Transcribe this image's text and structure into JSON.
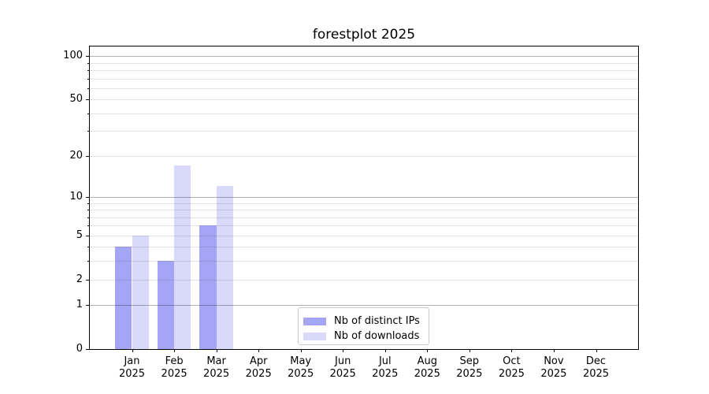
{
  "chart_data": {
    "type": "bar",
    "title": "forestplot 2025",
    "categories": [
      {
        "month": "Jan",
        "year": "2025"
      },
      {
        "month": "Feb",
        "year": "2025"
      },
      {
        "month": "Mar",
        "year": "2025"
      },
      {
        "month": "Apr",
        "year": "2025"
      },
      {
        "month": "May",
        "year": "2025"
      },
      {
        "month": "Jun",
        "year": "2025"
      },
      {
        "month": "Jul",
        "year": "2025"
      },
      {
        "month": "Aug",
        "year": "2025"
      },
      {
        "month": "Sep",
        "year": "2025"
      },
      {
        "month": "Oct",
        "year": "2025"
      },
      {
        "month": "Nov",
        "year": "2025"
      },
      {
        "month": "Dec",
        "year": "2025"
      }
    ],
    "series": [
      {
        "name": "Nb of distinct IPs",
        "color": "#a5a5f6",
        "values": [
          4,
          3,
          6,
          0,
          0,
          0,
          0,
          0,
          0,
          0,
          0,
          0
        ]
      },
      {
        "name": "Nb of downloads",
        "color": "#d9d9fb",
        "values": [
          5,
          17,
          12,
          0,
          0,
          0,
          0,
          0,
          0,
          0,
          0,
          0
        ]
      }
    ],
    "y_axis": {
      "scale": "log1p",
      "top_value": 116.5,
      "ticks": [
        0,
        1,
        2,
        5,
        10,
        20,
        50,
        100
      ],
      "major_gridlines": [
        1,
        10,
        100
      ],
      "minor_gridlines": [
        2,
        3,
        4,
        5,
        6,
        7,
        8,
        9,
        20,
        30,
        40,
        50,
        60,
        70,
        80,
        90
      ]
    },
    "legend": {
      "position": "lower center"
    },
    "colors": {
      "background": "#ffffff",
      "major_grid_rgba": "rgba(0,0,0,0.30)",
      "minor_grid_rgba": "rgba(0,0,0,0.10)",
      "axis": "#000000"
    }
  }
}
